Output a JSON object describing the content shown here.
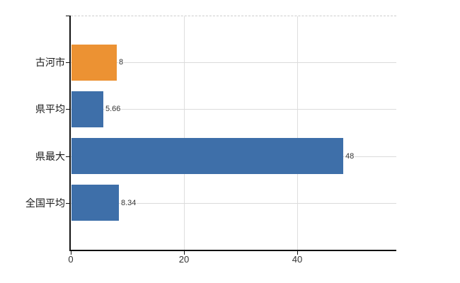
{
  "chart_data": {
    "type": "bar",
    "orientation": "horizontal",
    "title": "",
    "xlabel": "",
    "ylabel": "",
    "categories": [
      "古河市",
      "県平均",
      "県最大",
      "全国平均"
    ],
    "values": [
      8,
      5.66,
      48,
      8.34
    ],
    "value_labels": [
      "8",
      "5.66",
      "48",
      "8.34"
    ],
    "bar_colors": [
      "#EC9233",
      "#3E6FA9",
      "#3E6FA9",
      "#3E6FA9"
    ],
    "x_ticks": [
      0,
      20,
      40
    ],
    "x_tick_labels": [
      "0",
      "20",
      "40"
    ],
    "xlim": [
      0,
      57.5
    ],
    "grid": true,
    "legend": false
  },
  "colors": {
    "highlight_bar": "#EC9233",
    "default_bar": "#3E6FA9",
    "gridline": "#DBDBDB",
    "axis": "#111111",
    "text": "#333333",
    "background": "#FFFFFF"
  }
}
